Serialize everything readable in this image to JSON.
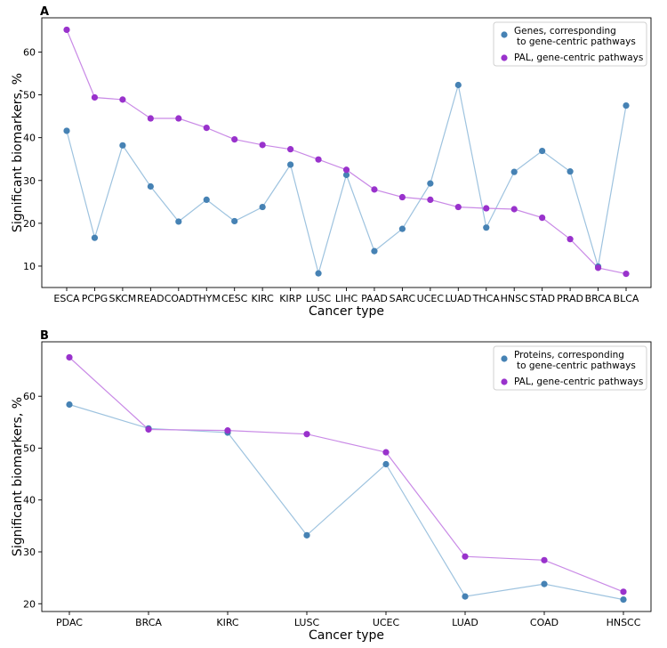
{
  "chart_data": [
    {
      "panel": "A",
      "type": "line",
      "xlabel": "Cancer type",
      "ylabel": "Significant biomarkers, %",
      "ylim": [
        5,
        68
      ],
      "yticks": [
        10,
        20,
        30,
        40,
        50,
        60
      ],
      "categories": [
        "ESCA",
        "PCPG",
        "SKCM",
        "READ",
        "COAD",
        "THYM",
        "CESC",
        "KIRC",
        "KIRP",
        "LUSC",
        "LIHC",
        "PAAD",
        "SARC",
        "UCEC",
        "LUAD",
        "THCA",
        "HNSC",
        "STAD",
        "PRAD",
        "BRCA",
        "BLCA"
      ],
      "legend_position": "top-right",
      "series": [
        {
          "name": "Genes, corresponding\n to gene-centric pathways",
          "color": "#4682b4",
          "line_color": "#9ec3df",
          "values": [
            41.6,
            16.6,
            38.2,
            28.6,
            20.4,
            25.5,
            20.5,
            23.8,
            33.7,
            8.3,
            31.3,
            13.5,
            18.7,
            29.3,
            52.3,
            19.0,
            32.0,
            36.9,
            32.1,
            9.9,
            47.5
          ]
        },
        {
          "name": "PAL, gene-centric pathways",
          "color": "#9932cc",
          "line_color": "#c98ae6",
          "values": [
            65.2,
            49.4,
            48.9,
            44.5,
            44.5,
            42.3,
            39.6,
            38.3,
            37.3,
            34.9,
            32.5,
            27.9,
            26.1,
            25.5,
            23.8,
            23.5,
            23.3,
            21.3,
            16.3,
            9.6,
            8.2
          ]
        }
      ]
    },
    {
      "panel": "B",
      "type": "line",
      "xlabel": "Cancer type",
      "ylabel": "Significant biomarkers, %",
      "ylim": [
        18.5,
        70.5
      ],
      "yticks": [
        20,
        30,
        40,
        50,
        60
      ],
      "categories": [
        "PDAC",
        "BRCA",
        "KIRC",
        "LUSC",
        "UCEC",
        "LUAD",
        "COAD",
        "HNSCC"
      ],
      "legend_position": "top-right",
      "series": [
        {
          "name": "Proteins, corresponding\n to gene-centric pathways",
          "color": "#4682b4",
          "line_color": "#9ec3df",
          "values": [
            58.4,
            53.8,
            53.0,
            33.2,
            46.9,
            21.4,
            23.8,
            20.8
          ]
        },
        {
          "name": "PAL, gene-centric pathways",
          "color": "#9932cc",
          "line_color": "#c98ae6",
          "values": [
            67.5,
            53.6,
            53.4,
            52.7,
            49.2,
            29.1,
            28.4,
            22.3
          ]
        }
      ]
    }
  ]
}
